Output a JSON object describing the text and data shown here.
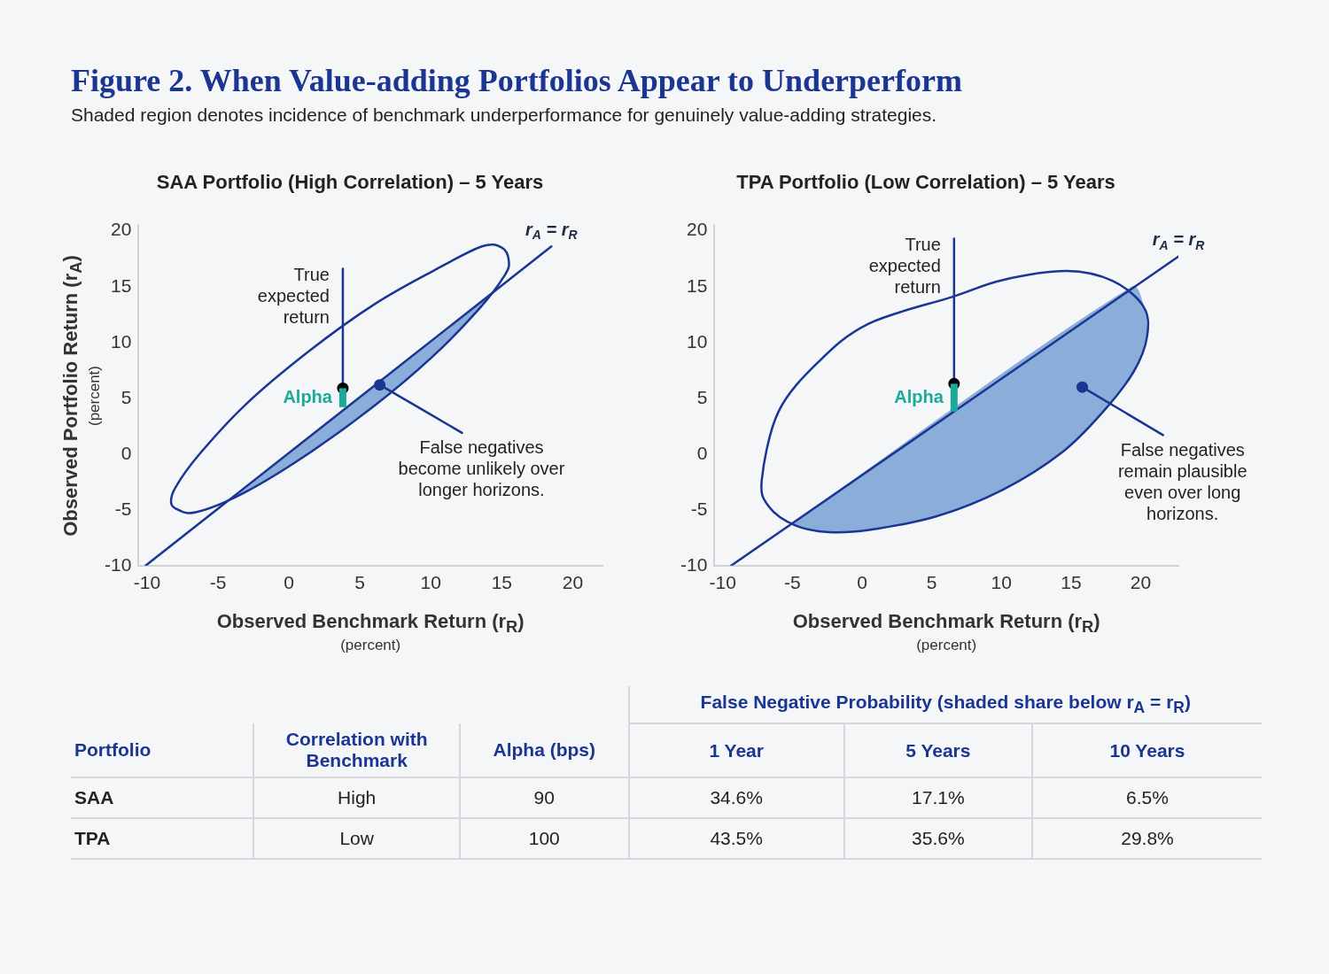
{
  "chart_data": [
    {
      "type": "other",
      "title": "Figure 2. When Value-adding Portfolios Appear to Underperform",
      "subtitle": "Shaded region denotes incidence of benchmark underperformance for genuinely value-adding strategies."
    },
    {
      "type": "line",
      "title": "SAA Portfolio (High Correlation) – 5 Years",
      "xlabel": "Observed Benchmark Return (r$_{R}$)\n(percent)",
      "ylabel": "Observed Portfolio Return (r$_{A}$)\n(percent)",
      "xlim": [
        -10.6,
        22.1
      ],
      "ylim": [
        -10,
        20.5
      ],
      "xticks": [
        -10,
        -5,
        0,
        5,
        10,
        15,
        20
      ],
      "yticks": [
        -10,
        -5,
        0,
        5,
        10,
        15,
        20
      ],
      "grid": false,
      "series": [
        {
          "type": "scatter",
          "marker": "circle",
          "color": "#000000",
          "x": [
            3.8
          ],
          "values": [
            5.9
          ]
        },
        {
          "type": "scatter",
          "marker": "circle",
          "color": "#1b3593",
          "x": [
            6.4
          ],
          "values": [
            6.2
          ]
        },
        {
          "type": "bar",
          "color": "#1aa99a",
          "x": [
            3.8
          ],
          "base": [
            4.2
          ],
          "values": [
            1.7
          ]
        },
        {
          "type": "line",
          "color": "#1b3593",
          "x": [
            3.8,
            3.8
          ],
          "values": [
            5.9,
            16.6
          ]
        },
        {
          "type": "line",
          "color": "#1b3593",
          "x": [
            6.4,
            12.2
          ],
          "values": [
            6.2,
            1.9
          ]
        },
        {
          "type": "line",
          "name": "r$_{A}$ = r$_{R}$",
          "color": "#1b3593",
          "x": [
            -10.1,
            18.5
          ],
          "values": [
            -10,
            18.6
          ]
        },
        {
          "type": "area",
          "color": "#8badda",
          "x": [
            -4.2,
            14.1,
            13.4,
            10.1,
            5.8,
            1.1,
            -3.2,
            -4.2
          ],
          "values": [
            -4.1,
            14.2,
            13.0,
            8.7,
            4.1,
            -0.2,
            -3.5,
            -4.1
          ]
        }
      ],
      "annotations": [
        {
          "text": "True\nexpected\nreturn",
          "x": 3.8,
          "y": 16.6
        },
        {
          "text": "Alpha",
          "x": 3.8,
          "y": 5.0
        },
        {
          "text": "False negatives\nbecome unlikely over\nlonger horizons.",
          "x": 12.2,
          "y": 1.9
        }
      ]
    },
    {
      "type": "line",
      "title": "TPA Portfolio (Low Correlation) – 5 Years",
      "xlabel": "Observed Benchmark Return (r$_{R}$)\n(percent)",
      "xlim": [
        -10.6,
        22.7
      ],
      "ylim": [
        -10,
        20.5
      ],
      "xticks": [
        -10,
        -5,
        0,
        5,
        10,
        15,
        20
      ],
      "yticks": [
        -10,
        -5,
        0,
        5,
        10,
        15,
        20
      ],
      "grid": false,
      "series": [
        {
          "type": "scatter",
          "marker": "circle",
          "color": "#000000",
          "x": [
            6.6
          ],
          "values": [
            6.3
          ]
        },
        {
          "type": "scatter",
          "marker": "circle",
          "color": "#1b3593",
          "x": [
            15.8
          ],
          "values": [
            6.0
          ]
        },
        {
          "type": "bar",
          "color": "#1aa99a",
          "x": [
            6.6
          ],
          "base": [
            3.8
          ],
          "values": [
            2.5
          ]
        },
        {
          "type": "line",
          "color": "#1b3593",
          "x": [
            6.6,
            6.6
          ],
          "values": [
            6.3,
            19.3
          ]
        },
        {
          "type": "line",
          "color": "#1b3593",
          "x": [
            15.8,
            21.6
          ],
          "values": [
            6.0,
            1.7
          ]
        },
        {
          "type": "line",
          "name": "r$_{A}$ = r$_{R}$",
          "color": "#1b3593",
          "x": [
            -9.4,
            22.7
          ],
          "values": [
            -10,
            17.7
          ]
        },
        {
          "type": "area",
          "color": "#8badda",
          "x": [
            -4.9,
            19.4,
            20.2,
            20.4,
            19.5,
            17.3,
            14.4,
            10.1,
            5.3,
            0.5,
            -2.4,
            -4.8,
            -4.9
          ],
          "values": [
            -6.1,
            15.0,
            13.2,
            10.8,
            7.4,
            3.8,
            0.2,
            -3.2,
            -5.6,
            -6.8,
            -7.0,
            -6.4,
            -6.1
          ]
        }
      ],
      "annotations": [
        {
          "text": "True\nexpected\nreturn",
          "x": 6.6,
          "y": 19.3
        },
        {
          "text": "Alpha",
          "x": 6.6,
          "y": 5.0
        },
        {
          "text": "False negatives\nremain plausible\neven over long\nhorizons.",
          "x": 21.6,
          "y": 1.7
        }
      ]
    },
    {
      "type": "other",
      "title": "False Negative Probability (shaded share below r$_{A}$ = r$_{R}$)",
      "categories": [
        "Portfolio",
        "Correlation with Benchmark",
        "Alpha (bps)",
        "1 Year",
        "5 Years",
        "10 Years"
      ],
      "y_categories": [
        "SAA",
        "TPA"
      ],
      "cell_labels": [
        [
          "High",
          "90",
          "34.6%",
          "17.1%",
          "6.5%"
        ],
        [
          "Low",
          "100",
          "43.5%",
          "35.6%",
          "29.8%"
        ]
      ]
    }
  ]
}
